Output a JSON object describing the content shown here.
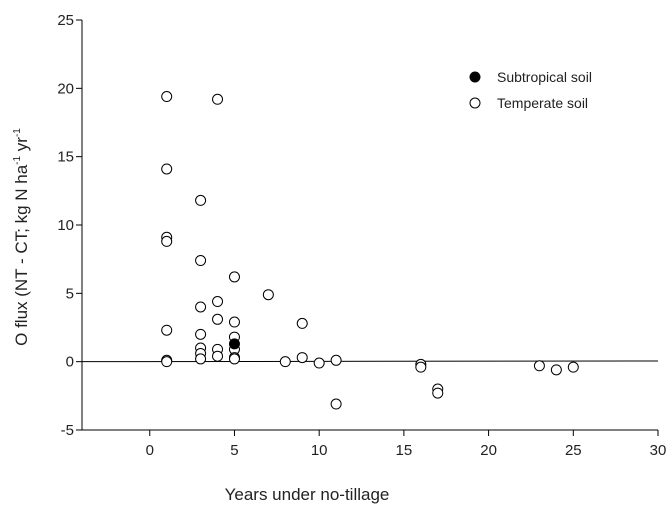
{
  "chart_data": {
    "type": "scatter",
    "title": "",
    "xlabel": "Years under no-tillage",
    "ylabel": "O flux (NT - CT; kg N ha",
    "ylabel_sup1": "-1",
    "ylabel_mid": " yr",
    "ylabel_sup2": "-1",
    "xlim": [
      -4,
      30
    ],
    "ylim": [
      -5,
      25
    ],
    "xticks": [
      0,
      5,
      10,
      15,
      20,
      25,
      30
    ],
    "yticks": [
      -5,
      0,
      5,
      10,
      15,
      20,
      25
    ],
    "grid": false,
    "legend_position": "top-right",
    "series": [
      {
        "name": "Subtropical soil",
        "marker": "filled-circle",
        "color": "#000000",
        "points": [
          [
            5,
            1.3
          ]
        ]
      },
      {
        "name": "Temperate soil",
        "marker": "open-circle",
        "color": "#000000",
        "points": [
          [
            1,
            19.4
          ],
          [
            1,
            14.1
          ],
          [
            1,
            9.1
          ],
          [
            1,
            8.8
          ],
          [
            1,
            2.3
          ],
          [
            1,
            0.1
          ],
          [
            1,
            0.0
          ],
          [
            3,
            11.8
          ],
          [
            3,
            7.4
          ],
          [
            3,
            4.0
          ],
          [
            3,
            2.0
          ],
          [
            3,
            1.0
          ],
          [
            3,
            0.6
          ],
          [
            3,
            0.2
          ],
          [
            4,
            19.2
          ],
          [
            4,
            4.4
          ],
          [
            4,
            3.1
          ],
          [
            4,
            0.9
          ],
          [
            4,
            0.4
          ],
          [
            5,
            6.2
          ],
          [
            5,
            2.9
          ],
          [
            5,
            1.8
          ],
          [
            5,
            0.9
          ],
          [
            5,
            0.3
          ],
          [
            5,
            0.2
          ],
          [
            7,
            4.9
          ],
          [
            8,
            0.0
          ],
          [
            9,
            2.8
          ],
          [
            9,
            0.3
          ],
          [
            10,
            -0.1
          ],
          [
            11,
            0.1
          ],
          [
            11,
            -3.1
          ],
          [
            16,
            -0.2
          ],
          [
            16,
            -0.4
          ],
          [
            17,
            -2.0
          ],
          [
            17,
            -2.3
          ],
          [
            23,
            -0.3
          ],
          [
            24,
            -0.6
          ],
          [
            25,
            -0.4
          ]
        ]
      }
    ]
  }
}
